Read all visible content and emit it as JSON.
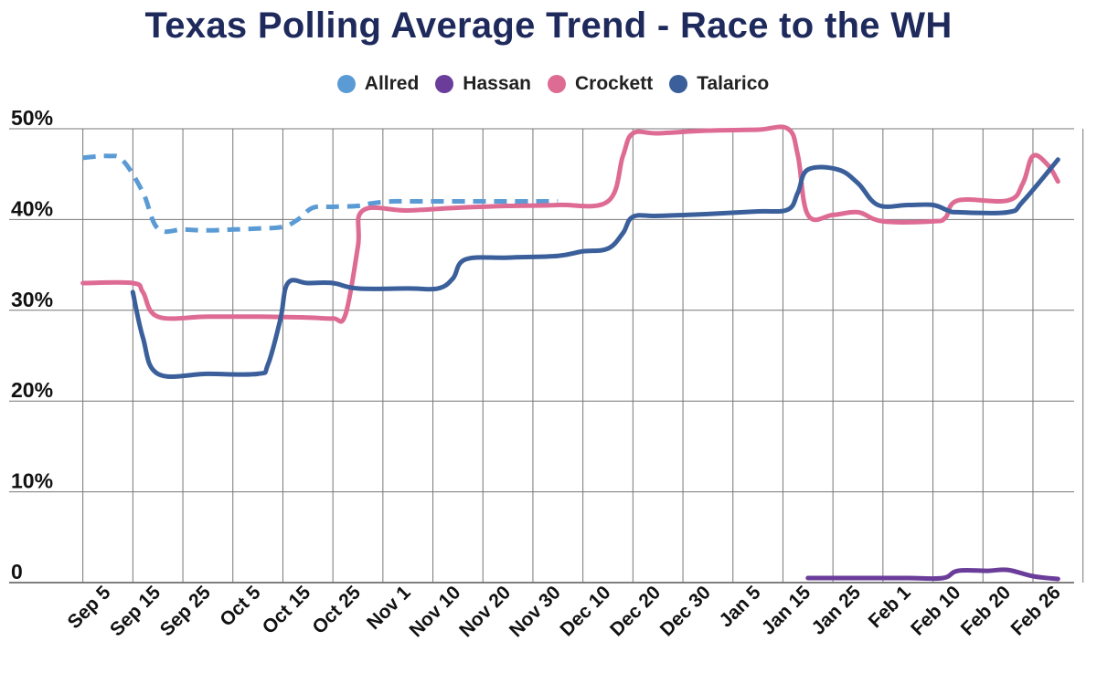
{
  "chart_data": {
    "type": "line",
    "title": "Texas Polling Average Trend - Race to the WH",
    "xlabel": "",
    "ylabel": "",
    "ylim": [
      0,
      50
    ],
    "yticks": [
      0,
      10,
      20,
      30,
      40,
      50
    ],
    "ytick_labels": [
      "0",
      "10%",
      "20%",
      "30%",
      "40%",
      "50%"
    ],
    "categories": [
      "Sep 5",
      "Sep 15",
      "Sep 25",
      "Oct 5",
      "Oct 15",
      "Oct 25",
      "Nov 1",
      "Nov 10",
      "Nov 20",
      "Nov 30",
      "Dec 10",
      "Dec 20",
      "Dec 30",
      "Jan 5",
      "Jan 15",
      "Jan 25",
      "Feb 1",
      "Feb 10",
      "Feb 20",
      "Feb 26"
    ],
    "grid": true,
    "legend_position": "top-center",
    "series": [
      {
        "name": "Allred",
        "color": "#5b9bd5",
        "style": "dashed",
        "points": [
          [
            -0.5,
            46.8
          ],
          [
            0,
            47
          ],
          [
            0.3,
            46.5
          ],
          [
            0.7,
            43
          ],
          [
            1,
            39
          ],
          [
            1.5,
            38.9
          ],
          [
            2,
            38.8
          ],
          [
            2.5,
            38.9
          ],
          [
            3,
            39
          ],
          [
            3.5,
            39.2
          ],
          [
            3.8,
            40
          ],
          [
            4.1,
            41.3
          ],
          [
            4.5,
            41.4
          ],
          [
            5,
            41.5
          ],
          [
            5.3,
            41.8
          ],
          [
            5.7,
            42
          ],
          [
            6,
            42
          ],
          [
            7,
            42
          ],
          [
            8,
            42
          ],
          [
            9,
            42
          ]
        ]
      },
      {
        "name": "Hassan",
        "color": "#6a3d9a",
        "style": "solid",
        "points": [
          [
            14,
            0.5
          ],
          [
            15,
            0.5
          ],
          [
            16,
            0.5
          ],
          [
            16.7,
            0.5
          ],
          [
            17,
            1.3
          ],
          [
            17.6,
            1.3
          ],
          [
            18,
            1.4
          ],
          [
            18.5,
            0.7
          ],
          [
            19,
            0.4
          ]
        ]
      },
      {
        "name": "Crockett",
        "color": "#de6b93",
        "style": "solid",
        "points": [
          [
            -0.5,
            33
          ],
          [
            0.5,
            33
          ],
          [
            0.7,
            32
          ],
          [
            1,
            29.3
          ],
          [
            2,
            29.3
          ],
          [
            3,
            29.3
          ],
          [
            4,
            29.2
          ],
          [
            4.5,
            29.1
          ],
          [
            4.75,
            29.5
          ],
          [
            5,
            37
          ],
          [
            5.1,
            41
          ],
          [
            6,
            41
          ],
          [
            7,
            41.3
          ],
          [
            8,
            41.5
          ],
          [
            9,
            41.6
          ],
          [
            10,
            42
          ],
          [
            10.3,
            47
          ],
          [
            10.5,
            49.5
          ],
          [
            11,
            49.5
          ],
          [
            12,
            49.8
          ],
          [
            13,
            49.9
          ],
          [
            13.6,
            50
          ],
          [
            13.8,
            47
          ],
          [
            14,
            40.5
          ],
          [
            14.5,
            40.5
          ],
          [
            15,
            40.8
          ],
          [
            15.5,
            39.8
          ],
          [
            16.5,
            39.8
          ],
          [
            16.75,
            40.2
          ],
          [
            17,
            42.1
          ],
          [
            18,
            42.1
          ],
          [
            18.3,
            44
          ],
          [
            18.5,
            47
          ],
          [
            18.8,
            46
          ],
          [
            19,
            44.2
          ]
        ]
      },
      {
        "name": "Talarico",
        "color": "#3a5f9a",
        "style": "solid",
        "points": [
          [
            0.5,
            32
          ],
          [
            0.7,
            27
          ],
          [
            1,
            23
          ],
          [
            2,
            23
          ],
          [
            3,
            23
          ],
          [
            3.2,
            24
          ],
          [
            3.45,
            29
          ],
          [
            3.6,
            33
          ],
          [
            4,
            33
          ],
          [
            4.5,
            33
          ],
          [
            5,
            32.4
          ],
          [
            6,
            32.4
          ],
          [
            6.6,
            32.4
          ],
          [
            6.9,
            33.5
          ],
          [
            7.15,
            35.6
          ],
          [
            8,
            35.8
          ],
          [
            9,
            36
          ],
          [
            9.5,
            36.5
          ],
          [
            10,
            36.8
          ],
          [
            10.3,
            38.5
          ],
          [
            10.5,
            40.3
          ],
          [
            11,
            40.4
          ],
          [
            12,
            40.6
          ],
          [
            13,
            40.9
          ],
          [
            13.6,
            41.1
          ],
          [
            13.8,
            43
          ],
          [
            14,
            45.5
          ],
          [
            14.6,
            45.5
          ],
          [
            15,
            44
          ],
          [
            15.4,
            41.6
          ],
          [
            16,
            41.6
          ],
          [
            16.5,
            41.6
          ],
          [
            16.8,
            41
          ],
          [
            17,
            40.8
          ],
          [
            18,
            40.8
          ],
          [
            18.3,
            42
          ],
          [
            19,
            46.6
          ]
        ]
      }
    ]
  }
}
